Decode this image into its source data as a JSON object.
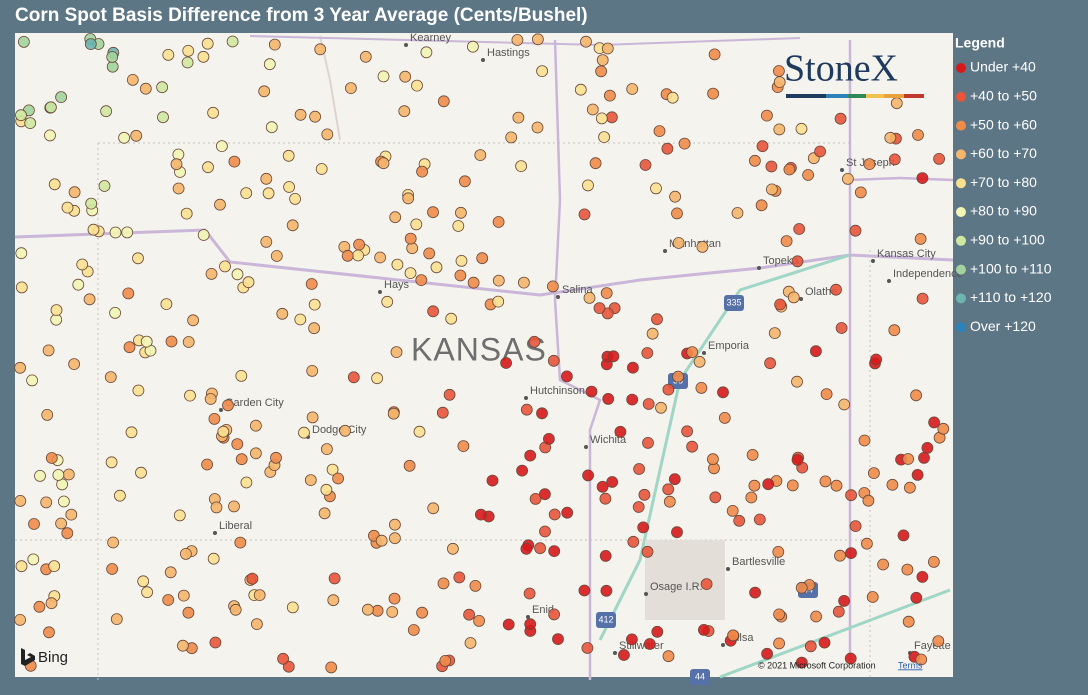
{
  "header": {
    "title": "Corn Spot Basis Difference from 3 Year Average (Cents/Bushel)"
  },
  "legend": {
    "title": "Legend",
    "color": "#ffffff",
    "items": [
      {
        "label": "Under +40",
        "color": "#d7191c"
      },
      {
        "label": "+40 to +50",
        "color": "#e8553b"
      },
      {
        "label": "+50 to +60",
        "color": "#f08c4a"
      },
      {
        "label": "+60 to +70",
        "color": "#f5b66c"
      },
      {
        "label": "+70 to +80",
        "color": "#f9e08f"
      },
      {
        "label": "+80 to +90",
        "color": "#f2f5b3"
      },
      {
        "label": "+90 to +100",
        "color": "#cfe8a0"
      },
      {
        "label": "+100 to +110",
        "color": "#a3d39c"
      },
      {
        "label": "+110 to +120",
        "color": "#6db5b0"
      },
      {
        "label": "Over +120",
        "color": "#2b83ba"
      }
    ]
  },
  "logo": {
    "text": "StoneX"
  },
  "map": {
    "state_label": "KANSAS",
    "places": [
      "Kearney",
      "Hastings",
      "St Joseph",
      "Manhattan",
      "Topeka",
      "Kansas City",
      "Independence",
      "Hays",
      "Salina",
      "Olathe",
      "Emporia",
      "Hutchinson",
      "Garden City",
      "Dodge City",
      "Wichita",
      "Liberal",
      "Bartlesville",
      "Osage I.R.",
      "Enid",
      "Tulsa",
      "Stillwater",
      "Fayette"
    ],
    "highways": [
      "335",
      "35",
      "44",
      "412",
      "44"
    ]
  },
  "footer": {
    "provider": "Bing",
    "copyright": "© 2021 Microsoft Corporation",
    "terms": "Terms"
  }
}
